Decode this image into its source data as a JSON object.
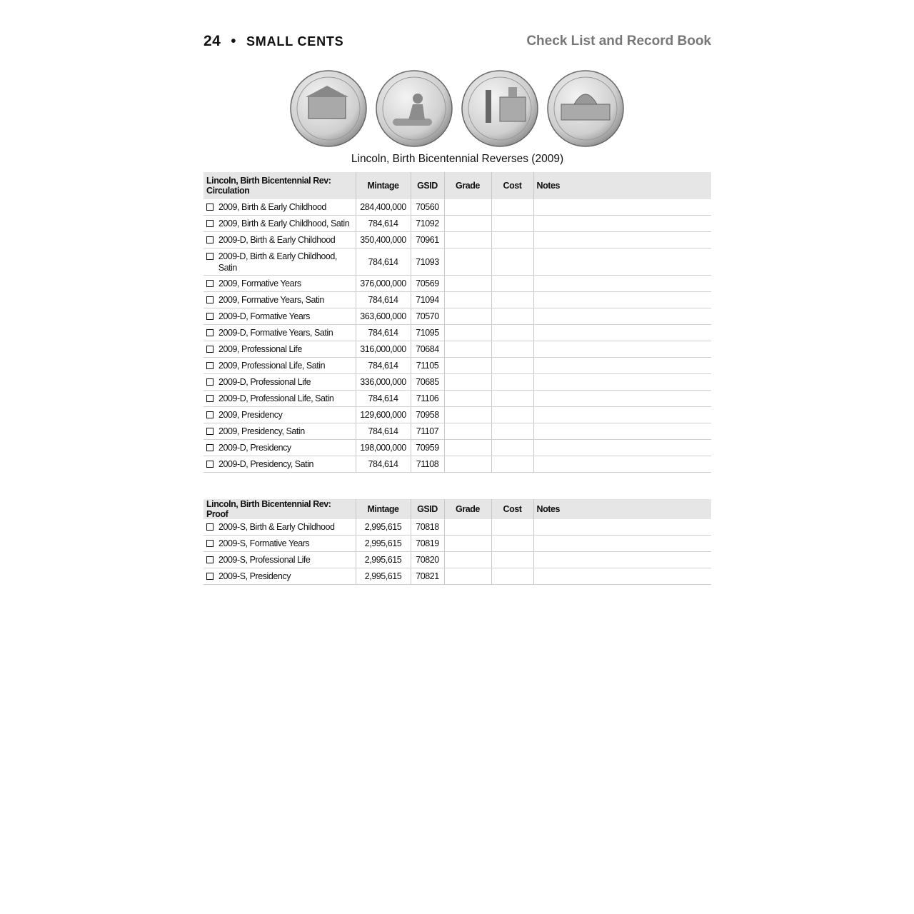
{
  "header": {
    "page_number": "24",
    "bullet": "•",
    "section": "SMALL CENTS",
    "book_title": "Check List and Record Book"
  },
  "coins": {
    "images": [
      "log-cabin-reverse",
      "lincoln-reading-on-log-reverse",
      "lincoln-illinois-capitol-reverse",
      "us-capitol-reverse"
    ],
    "caption": "Lincoln, Birth Bicentennial Reverses (2009)"
  },
  "tables": [
    {
      "columns": [
        "Lincoln, Birth Bicentennial Rev: Circulation",
        "Mintage",
        "GSID",
        "Grade",
        "Cost",
        "Notes"
      ],
      "rows": [
        [
          "2009, Birth & Early Childhood",
          "284,400,000",
          "70560"
        ],
        [
          "2009, Birth & Early Childhood, Satin",
          "784,614",
          "71092"
        ],
        [
          "2009-D, Birth & Early Childhood",
          "350,400,000",
          "70961"
        ],
        [
          "2009-D, Birth & Early Childhood, Satin",
          "784,614",
          "71093"
        ],
        [
          "2009, Formative Years",
          "376,000,000",
          "70569"
        ],
        [
          "2009, Formative Years, Satin",
          "784,614",
          "71094"
        ],
        [
          "2009-D, Formative Years",
          "363,600,000",
          "70570"
        ],
        [
          "2009-D, Formative Years, Satin",
          "784,614",
          "71095"
        ],
        [
          "2009, Professional Life",
          "316,000,000",
          "70684"
        ],
        [
          "2009, Professional Life, Satin",
          "784,614",
          "71105"
        ],
        [
          "2009-D, Professional Life",
          "336,000,000",
          "70685"
        ],
        [
          "2009-D, Professional Life, Satin",
          "784,614",
          "71106"
        ],
        [
          "2009, Presidency",
          "129,600,000",
          "70958"
        ],
        [
          "2009, Presidency, Satin",
          "784,614",
          "71107"
        ],
        [
          "2009-D, Presidency",
          "198,000,000",
          "70959"
        ],
        [
          "2009-D, Presidency, Satin",
          "784,614",
          "71108"
        ]
      ]
    },
    {
      "columns": [
        "Lincoln, Birth Bicentennial Rev: Proof",
        "Mintage",
        "GSID",
        "Grade",
        "Cost",
        "Notes"
      ],
      "rows": [
        [
          "2009-S, Birth & Early Childhood",
          "2,995,615",
          "70818"
        ],
        [
          "2009-S, Formative Years",
          "2,995,615",
          "70819"
        ],
        [
          "2009-S, Professional Life",
          "2,995,615",
          "70820"
        ],
        [
          "2009-S, Presidency",
          "2,995,615",
          "70821"
        ]
      ]
    }
  ]
}
